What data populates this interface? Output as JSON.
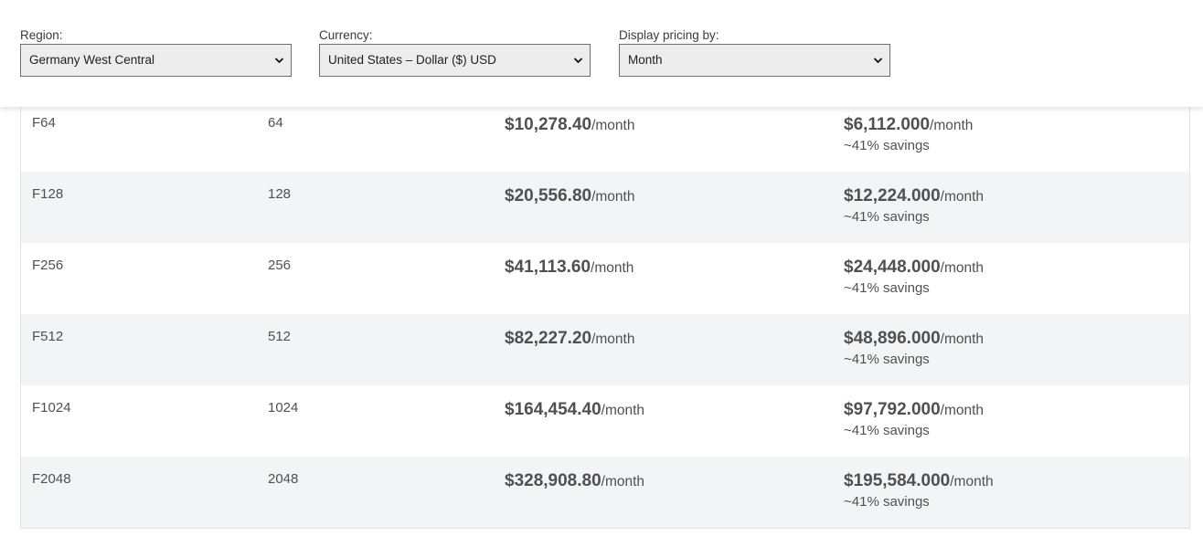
{
  "filters": {
    "region": {
      "label": "Region:",
      "value": "Germany West Central"
    },
    "currency": {
      "label": "Currency:",
      "value": "United States – Dollar ($) USD"
    },
    "display": {
      "label": "Display pricing by:",
      "value": "Month"
    }
  },
  "table": {
    "rows": [
      {
        "sku": "F64",
        "units": "64",
        "payg_amount": "$10,278.40",
        "payg_unit": "/month",
        "reserved_amount": "$6,112.000",
        "reserved_unit": "/month",
        "savings": "~41% savings"
      },
      {
        "sku": "F128",
        "units": "128",
        "payg_amount": "$20,556.80",
        "payg_unit": "/month",
        "reserved_amount": "$12,224.000",
        "reserved_unit": "/month",
        "savings": "~41% savings"
      },
      {
        "sku": "F256",
        "units": "256",
        "payg_amount": "$41,113.60",
        "payg_unit": "/month",
        "reserved_amount": "$24,448.000",
        "reserved_unit": "/month",
        "savings": "~41% savings"
      },
      {
        "sku": "F512",
        "units": "512",
        "payg_amount": "$82,227.20",
        "payg_unit": "/month",
        "reserved_amount": "$48,896.000",
        "reserved_unit": "/month",
        "savings": "~41% savings"
      },
      {
        "sku": "F1024",
        "units": "1024",
        "payg_amount": "$164,454.40",
        "payg_unit": "/month",
        "reserved_amount": "$97,792.000",
        "reserved_unit": "/month",
        "savings": "~41% savings"
      },
      {
        "sku": "F2048",
        "units": "2048",
        "payg_amount": "$328,908.80",
        "payg_unit": "/month",
        "reserved_amount": "$195,584.000",
        "reserved_unit": "/month",
        "savings": "~41% savings"
      }
    ]
  }
}
